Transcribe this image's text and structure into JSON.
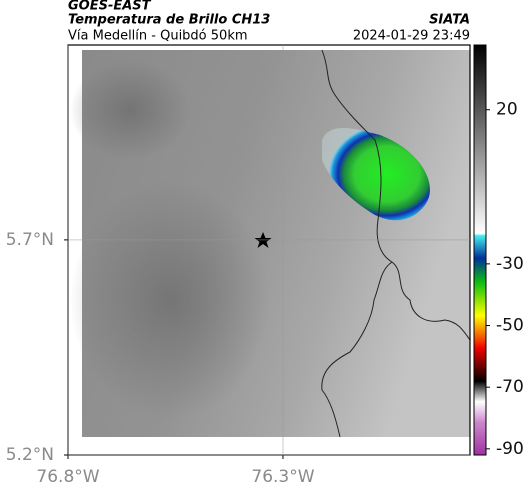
{
  "header": {
    "title": "GOES-EAST",
    "subtitle": "Temperatura de Brillo CH13",
    "route": "Vía Medellín - Quibdó 50km",
    "source": "SIATA",
    "timestamp": "2024-01-29 23:49"
  },
  "map": {
    "xlim": [
      -76.8,
      -75.865
    ],
    "ylim": [
      5.2,
      6.153
    ],
    "xticks": [
      {
        "value": -76.8,
        "label": "76.8°W"
      },
      {
        "value": -76.3,
        "label": "76.3°W"
      }
    ],
    "yticks": [
      {
        "value": 5.7,
        "label": "5.7°N"
      },
      {
        "value": 5.2,
        "label": "5.2°N"
      }
    ]
  },
  "colorbar": {
    "lim": [
      -92,
      41
    ],
    "ticks": [
      20,
      -30,
      -50,
      -70,
      -90
    ]
  }
}
